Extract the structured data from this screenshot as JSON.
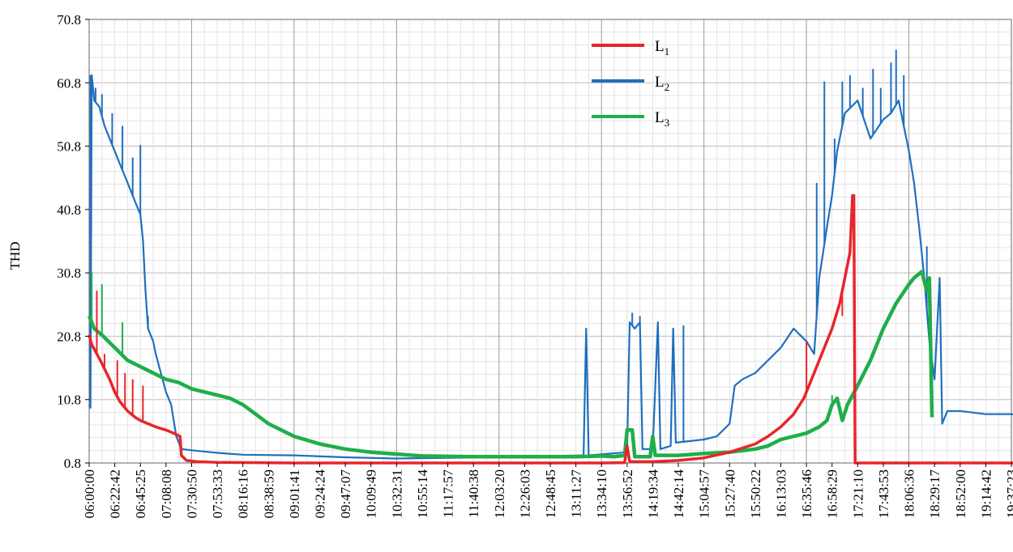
{
  "chart_data": {
    "type": "line",
    "title": "",
    "ylabel": "THD",
    "xlabel": "",
    "ylim": [
      0.8,
      70.8
    ],
    "yticks": [
      "0.8",
      "10.8",
      "20.8",
      "30.8",
      "40.8",
      "50.8",
      "60.8",
      "70.8"
    ],
    "x_ticks": [
      "06:00:00",
      "06:22:42",
      "06:45:25",
      "07:08:08",
      "07:30:50",
      "07:53:33",
      "08:16:16",
      "08:38:59",
      "09:01:41",
      "09:24:24",
      "09:47:07",
      "10:09:49",
      "10:32:31",
      "10:55:14",
      "11:17:57",
      "11:40:38",
      "12:03:20",
      "12:26:03",
      "12:48:45",
      "13:11:27",
      "13:34:10",
      "13:56:52",
      "14:19:34",
      "14:42:14",
      "15:04:57",
      "15:27:40",
      "15:50:22",
      "16:13:03",
      "16:35:46",
      "16:58:29",
      "17:21:10",
      "17:43:53",
      "18:06:36",
      "18:29:17",
      "18:52:00",
      "19:14:42",
      "19:37:23"
    ],
    "grid": true,
    "legend_position": "top-center",
    "colors": {
      "L1": "#e8252a",
      "L2": "#1f6fbf",
      "L3": "#1fae4a"
    },
    "series": [
      {
        "name": "L1",
        "sub": "1",
        "color": "#e8252a",
        "width": 3.5,
        "points": [
          [
            0,
            21
          ],
          [
            0.1,
            19.5
          ],
          [
            0.3,
            18
          ],
          [
            0.5,
            16.5
          ],
          [
            0.8,
            14
          ],
          [
            1.0,
            12
          ],
          [
            1.2,
            10.5
          ],
          [
            1.5,
            9
          ],
          [
            1.8,
            8
          ],
          [
            2.0,
            7.5
          ],
          [
            2.3,
            7
          ],
          [
            2.6,
            6.5
          ],
          [
            3.0,
            6
          ],
          [
            3.3,
            5.5
          ],
          [
            3.55,
            5
          ],
          [
            3.6,
            2
          ],
          [
            3.8,
            1.2
          ],
          [
            4.2,
            1
          ],
          [
            5,
            0.9
          ],
          [
            8,
            0.8
          ],
          [
            12,
            0.8
          ],
          [
            16,
            0.8
          ],
          [
            20,
            0.8
          ],
          [
            20.9,
            0.85
          ],
          [
            21,
            3.5
          ],
          [
            21.1,
            1
          ],
          [
            22,
            1
          ],
          [
            23,
            1.2
          ],
          [
            24,
            1.6
          ],
          [
            25,
            2.5
          ],
          [
            26,
            3.8
          ],
          [
            26.5,
            5
          ],
          [
            27,
            6.5
          ],
          [
            27.5,
            8.5
          ],
          [
            27.9,
            11
          ],
          [
            28.2,
            14
          ],
          [
            28.5,
            17
          ],
          [
            28.7,
            19
          ],
          [
            29,
            22
          ],
          [
            29.3,
            26
          ],
          [
            29.5,
            30
          ],
          [
            29.7,
            34
          ],
          [
            29.8,
            43
          ],
          [
            29.85,
            43
          ],
          [
            29.9,
            0.8
          ],
          [
            37,
            0.8
          ]
        ]
      },
      {
        "name": "L2",
        "sub": "2",
        "color": "#1f6fbf",
        "width": 2.2,
        "points": [
          [
            0,
            10
          ],
          [
            0.05,
            9.5
          ],
          [
            0.1,
            62
          ],
          [
            0.2,
            58
          ],
          [
            0.4,
            57
          ],
          [
            0.6,
            54
          ],
          [
            0.8,
            52
          ],
          [
            1.0,
            50
          ],
          [
            1.2,
            48
          ],
          [
            1.4,
            46
          ],
          [
            1.6,
            44
          ],
          [
            1.8,
            42
          ],
          [
            2.0,
            40
          ],
          [
            2.1,
            36
          ],
          [
            2.2,
            28
          ],
          [
            2.3,
            22
          ],
          [
            2.5,
            20
          ],
          [
            2.6,
            18
          ],
          [
            2.8,
            15
          ],
          [
            3.0,
            12
          ],
          [
            3.2,
            10
          ],
          [
            3.4,
            5
          ],
          [
            3.6,
            3
          ],
          [
            4,
            2.8
          ],
          [
            5,
            2.4
          ],
          [
            6,
            2.1
          ],
          [
            8,
            2.0
          ],
          [
            10,
            1.7
          ],
          [
            12,
            1.5
          ],
          [
            14,
            1.6
          ],
          [
            16,
            1.7
          ],
          [
            18,
            1.9
          ],
          [
            19.3,
            2.0
          ],
          [
            19.4,
            22
          ],
          [
            19.5,
            2
          ],
          [
            21,
            2.5
          ],
          [
            21.1,
            23
          ],
          [
            21.3,
            22
          ],
          [
            21.5,
            23
          ],
          [
            21.6,
            3
          ],
          [
            22,
            3
          ],
          [
            22.2,
            23
          ],
          [
            22.3,
            3
          ],
          [
            22.7,
            3.5
          ],
          [
            22.8,
            22
          ],
          [
            22.9,
            4
          ],
          [
            24,
            4.5
          ],
          [
            24.5,
            5
          ],
          [
            25,
            7
          ],
          [
            25.2,
            13
          ],
          [
            25.5,
            14
          ],
          [
            26,
            15
          ],
          [
            26.5,
            17
          ],
          [
            27,
            19
          ],
          [
            27.5,
            22
          ],
          [
            28,
            20
          ],
          [
            28.3,
            18
          ],
          [
            28.5,
            30
          ],
          [
            28.8,
            38
          ],
          [
            29,
            43
          ],
          [
            29.2,
            50
          ],
          [
            29.5,
            56
          ],
          [
            30,
            58
          ],
          [
            30.5,
            52
          ],
          [
            31,
            55
          ],
          [
            31.3,
            56
          ],
          [
            31.6,
            58
          ],
          [
            31.8,
            54
          ],
          [
            32,
            50
          ],
          [
            32.2,
            45
          ],
          [
            32.4,
            38
          ],
          [
            32.6,
            30
          ],
          [
            32.8,
            20
          ],
          [
            33,
            14
          ],
          [
            33.2,
            30
          ],
          [
            33.3,
            7
          ],
          [
            33.5,
            9
          ],
          [
            34,
            9
          ],
          [
            35,
            8.5
          ],
          [
            36,
            8.5
          ],
          [
            37,
            8
          ]
        ]
      },
      {
        "name": "L3",
        "sub": "3",
        "color": "#1fae4a",
        "width": 4.5,
        "points": [
          [
            0,
            24
          ],
          [
            0.2,
            22
          ],
          [
            0.5,
            21
          ],
          [
            1.0,
            19
          ],
          [
            1.5,
            17
          ],
          [
            2.0,
            16
          ],
          [
            2.5,
            15
          ],
          [
            3.0,
            14
          ],
          [
            3.5,
            13.5
          ],
          [
            4,
            12.5
          ],
          [
            4.5,
            12
          ],
          [
            5,
            11.5
          ],
          [
            5.5,
            11
          ],
          [
            6,
            10
          ],
          [
            6.5,
            8.5
          ],
          [
            7,
            7
          ],
          [
            7.5,
            6
          ],
          [
            8,
            5
          ],
          [
            9,
            3.8
          ],
          [
            10,
            3
          ],
          [
            11,
            2.5
          ],
          [
            12,
            2.2
          ],
          [
            13,
            1.9
          ],
          [
            15,
            1.8
          ],
          [
            17,
            1.8
          ],
          [
            19,
            1.8
          ],
          [
            20,
            1.9
          ],
          [
            20.5,
            1.8
          ],
          [
            20.9,
            2
          ],
          [
            21,
            6
          ],
          [
            21.2,
            6
          ],
          [
            21.3,
            1.8
          ],
          [
            21.9,
            1.8
          ],
          [
            22,
            5
          ],
          [
            22.1,
            2
          ],
          [
            23,
            2
          ],
          [
            24,
            2.3
          ],
          [
            25,
            2.5
          ],
          [
            26,
            3
          ],
          [
            26.5,
            3.5
          ],
          [
            27,
            4.5
          ],
          [
            28,
            5.5
          ],
          [
            28.5,
            6.5
          ],
          [
            28.8,
            7.5
          ],
          [
            29,
            10
          ],
          [
            29.2,
            11
          ],
          [
            29.4,
            7.5
          ],
          [
            29.6,
            10
          ],
          [
            30,
            13
          ],
          [
            30.5,
            17
          ],
          [
            31,
            22
          ],
          [
            31.5,
            26
          ],
          [
            32,
            29
          ],
          [
            32.2,
            30
          ],
          [
            32.5,
            31
          ],
          [
            32.7,
            28
          ],
          [
            32.8,
            30
          ],
          [
            32.9,
            8
          ]
        ]
      }
    ],
    "spikes": {
      "L1": [
        [
          0.3,
          28
        ],
        [
          0.6,
          18
        ],
        [
          1.1,
          17
        ],
        [
          1.4,
          15
        ],
        [
          1.7,
          14
        ],
        [
          2.1,
          13
        ],
        [
          28.0,
          20
        ],
        [
          29.4,
          24
        ]
      ],
      "L2": [
        [
          0.05,
          62
        ],
        [
          0.25,
          60
        ],
        [
          0.5,
          59
        ],
        [
          0.9,
          56
        ],
        [
          1.3,
          54
        ],
        [
          1.7,
          49
        ],
        [
          2.0,
          51
        ],
        [
          2.3,
          24
        ],
        [
          19.4,
          22
        ],
        [
          21.2,
          24.5
        ],
        [
          21.5,
          24
        ],
        [
          22.8,
          22
        ],
        [
          23.2,
          22.5
        ],
        [
          28.4,
          45
        ],
        [
          28.7,
          61
        ],
        [
          29.1,
          52
        ],
        [
          29.4,
          61
        ],
        [
          29.7,
          62
        ],
        [
          30.2,
          60
        ],
        [
          30.6,
          63
        ],
        [
          30.9,
          60
        ],
        [
          31.3,
          64
        ],
        [
          31.5,
          66
        ],
        [
          31.8,
          62
        ],
        [
          32.4,
          38
        ],
        [
          32.7,
          35
        ]
      ],
      "L3": [
        [
          0.1,
          31
        ],
        [
          0.5,
          29
        ],
        [
          1.3,
          23
        ],
        [
          29.0,
          11.5
        ],
        [
          32.6,
          30.5
        ]
      ]
    }
  }
}
